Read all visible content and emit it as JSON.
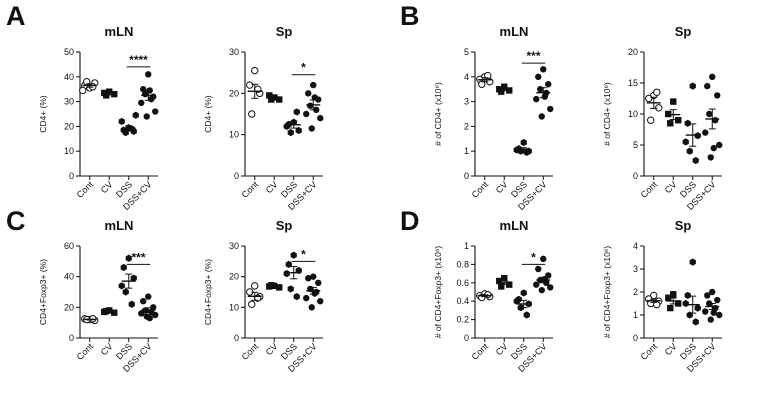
{
  "figure": {
    "panels": [
      {
        "letter": "A"
      },
      {
        "letter": "B"
      },
      {
        "letter": "C"
      },
      {
        "letter": "D"
      }
    ]
  },
  "chart_data": [
    {
      "type": "scatter",
      "panel": "A",
      "title": "mLN",
      "ylabel": "CD4+ (%)",
      "categories": [
        "Cont",
        "CV",
        "DSS",
        "DSS+CV"
      ],
      "ylim": [
        0,
        50
      ],
      "yticks": [
        0,
        10,
        20,
        30,
        40,
        50
      ],
      "markers": [
        "open-circle",
        "filled-square",
        "filled-hexagon",
        "filled-circle"
      ],
      "points": [
        [
          35.5,
          36.5,
          37.5,
          38,
          36,
          34.5
        ],
        [
          34,
          33.5,
          33,
          32.5
        ],
        [
          19.5,
          18.5,
          18,
          17.5,
          19,
          22,
          24.5
        ],
        [
          41,
          35,
          32,
          33,
          31,
          29.5,
          26,
          24,
          34.5
        ]
      ],
      "means": [
        36.5,
        33.2,
        19.2,
        32.5
      ],
      "sems": [
        0.7,
        0.5,
        1.0,
        2.0
      ],
      "significance": [
        {
          "from": 2,
          "to": 3,
          "label": "****",
          "y": 44
        }
      ]
    },
    {
      "type": "scatter",
      "panel": "A",
      "title": "Sp",
      "ylabel": "CD4+ (%)",
      "categories": [
        "Cont",
        "CV",
        "DSS",
        "DSS+CV"
      ],
      "ylim": [
        0,
        30
      ],
      "yticks": [
        0,
        10,
        20,
        30
      ],
      "markers": [
        "open-circle",
        "filled-square",
        "filled-hexagon",
        "filled-circle"
      ],
      "points": [
        [
          25.5,
          22,
          20,
          15,
          21
        ],
        [
          19,
          19.5,
          18.5,
          18.5
        ],
        [
          13,
          12.5,
          11,
          10.5,
          15.5,
          12
        ],
        [
          22,
          20,
          18.5,
          17,
          16,
          15,
          14,
          11.5,
          19
        ]
      ],
      "means": [
        20.5,
        19.0,
        12.4,
        17.2
      ],
      "sems": [
        1.7,
        0.3,
        0.8,
        1.2
      ],
      "significance": [
        {
          "from": 2,
          "to": 3,
          "label": "*",
          "y": 24.5
        }
      ]
    },
    {
      "type": "scatter",
      "panel": "B",
      "title": "mLN",
      "ylabel": "# of CD4+ (x10⁶)",
      "categories": [
        "Cont",
        "CV",
        "DSS",
        "DSS+CV"
      ],
      "ylim": [
        0,
        5
      ],
      "yticks": [
        0,
        1,
        2,
        3,
        4,
        5
      ],
      "markers": [
        "open-circle",
        "filled-square",
        "filled-hexagon",
        "filled-circle"
      ],
      "points": [
        [
          4.0,
          3.9,
          3.8,
          3.7,
          4.05
        ],
        [
          3.6,
          3.5,
          3.45,
          3.4
        ],
        [
          1.35,
          1.1,
          1.0,
          1.0,
          0.95,
          1.05
        ],
        [
          4.3,
          4.0,
          3.7,
          3.5,
          3.35,
          3.1,
          2.7,
          2.4,
          3.2
        ]
      ],
      "means": [
        3.88,
        3.49,
        1.08,
        3.36
      ],
      "sems": [
        0.08,
        0.05,
        0.06,
        0.2
      ],
      "significance": [
        {
          "from": 2,
          "to": 3,
          "label": "***",
          "y": 4.55
        }
      ]
    },
    {
      "type": "scatter",
      "panel": "B",
      "title": "Sp",
      "ylabel": "# of CD4+ (x10⁶)",
      "categories": [
        "Cont",
        "CV",
        "DSS",
        "DSS+CV"
      ],
      "ylim": [
        0,
        20
      ],
      "yticks": [
        0,
        5,
        10,
        15,
        20
      ],
      "markers": [
        "open-circle",
        "filled-square",
        "filled-hexagon",
        "filled-circle"
      ],
      "points": [
        [
          13,
          12.5,
          11,
          9,
          13.5
        ],
        [
          12,
          10,
          9,
          8.5
        ],
        [
          14.5,
          8.5,
          6.5,
          4,
          2.5,
          5.5
        ],
        [
          16,
          14.5,
          13,
          10,
          9,
          7,
          5,
          3,
          4.5
        ]
      ],
      "means": [
        11.8,
        9.9,
        6.6,
        9.2
      ],
      "sems": [
        0.9,
        0.8,
        1.8,
        1.6
      ],
      "significance": []
    },
    {
      "type": "scatter",
      "panel": "C",
      "title": "mLN",
      "ylabel": "CD4+Foxp3+ (%)",
      "categories": [
        "Cont",
        "CV",
        "DSS",
        "DSS+CV"
      ],
      "ylim": [
        0,
        60
      ],
      "yticks": [
        0,
        20,
        40,
        60
      ],
      "markers": [
        "open-circle",
        "filled-square",
        "filled-hexagon",
        "filled-circle"
      ],
      "points": [
        [
          12,
          12.5,
          11.5,
          12,
          12.5
        ],
        [
          18,
          17,
          16.5,
          17.5
        ],
        [
          52,
          46,
          39,
          30,
          22,
          34
        ],
        [
          27,
          24,
          20,
          18,
          17,
          16,
          15,
          14,
          13
        ]
      ],
      "means": [
        12.1,
        17.3,
        37.1,
        18.2
      ],
      "sems": [
        0.3,
        0.4,
        4.6,
        1.5
      ],
      "significance": [
        {
          "from": 2,
          "to": 3,
          "label": "***",
          "y": 48
        }
      ]
    },
    {
      "type": "scatter",
      "panel": "C",
      "title": "Sp",
      "ylabel": "CD4+Foxp3+ (%)",
      "categories": [
        "Cont",
        "CV",
        "DSS",
        "DSS+CV"
      ],
      "ylim": [
        0,
        30
      ],
      "yticks": [
        0,
        10,
        20,
        30
      ],
      "markers": [
        "open-circle",
        "filled-square",
        "filled-hexagon",
        "filled-circle"
      ],
      "points": [
        [
          17,
          15,
          13.5,
          11,
          13
        ],
        [
          17,
          16.8,
          16.5,
          17.2
        ],
        [
          27,
          24,
          22,
          16,
          13.5,
          21
        ],
        [
          20,
          19.5,
          18,
          16,
          15,
          13,
          12,
          10,
          14.5
        ]
      ],
      "means": [
        13.6,
        16.9,
        21.3,
        15.4
      ],
      "sems": [
        1.3,
        0.2,
        2.0,
        1.1
      ],
      "significance": [
        {
          "from": 2,
          "to": 3,
          "label": "*",
          "y": 25
        }
      ]
    },
    {
      "type": "scatter",
      "panel": "D",
      "title": "mLN",
      "ylabel": "# of CD4+Foxp3+ (x10⁶)",
      "categories": [
        "Cont",
        "CV",
        "DSS",
        "DSS+CV"
      ],
      "ylim": [
        0,
        1.0
      ],
      "yticks": [
        0,
        0.2,
        0.4,
        0.6,
        0.8,
        1.0
      ],
      "markers": [
        "open-circle",
        "filled-square",
        "filled-hexagon",
        "filled-circle"
      ],
      "points": [
        [
          0.48,
          0.46,
          0.45,
          0.44,
          0.47
        ],
        [
          0.65,
          0.62,
          0.58,
          0.56
        ],
        [
          0.49,
          0.42,
          0.37,
          0.33,
          0.25,
          0.4
        ],
        [
          0.86,
          0.75,
          0.68,
          0.63,
          0.6,
          0.58,
          0.55,
          0.52,
          0.64
        ]
      ],
      "means": [
        0.46,
        0.6,
        0.37,
        0.63
      ],
      "sems": [
        0.01,
        0.02,
        0.04,
        0.03
      ],
      "significance": [
        {
          "from": 2,
          "to": 3,
          "label": "*",
          "y": 0.8
        }
      ]
    },
    {
      "type": "scatter",
      "panel": "D",
      "title": "Sp",
      "ylabel": "# of CD4+Foxp3+ (x10⁶)",
      "categories": [
        "Cont",
        "CV",
        "DSS",
        "DSS+CV"
      ],
      "ylim": [
        0,
        4
      ],
      "yticks": [
        0,
        1,
        2,
        3,
        4
      ],
      "markers": [
        "open-circle",
        "filled-square",
        "filled-hexagon",
        "filled-circle"
      ],
      "points": [
        [
          1.85,
          1.7,
          1.6,
          1.5,
          1.45
        ],
        [
          1.9,
          1.75,
          1.5,
          1.3
        ],
        [
          3.3,
          1.85,
          1.3,
          1.0,
          0.7,
          1.5
        ],
        [
          2.0,
          1.85,
          1.65,
          1.5,
          1.3,
          1.15,
          1.0,
          0.8,
          1.1
        ]
      ],
      "means": [
        1.62,
        1.61,
        1.45,
        1.37
      ],
      "sems": [
        0.07,
        0.13,
        0.37,
        0.13
      ],
      "significance": []
    }
  ]
}
